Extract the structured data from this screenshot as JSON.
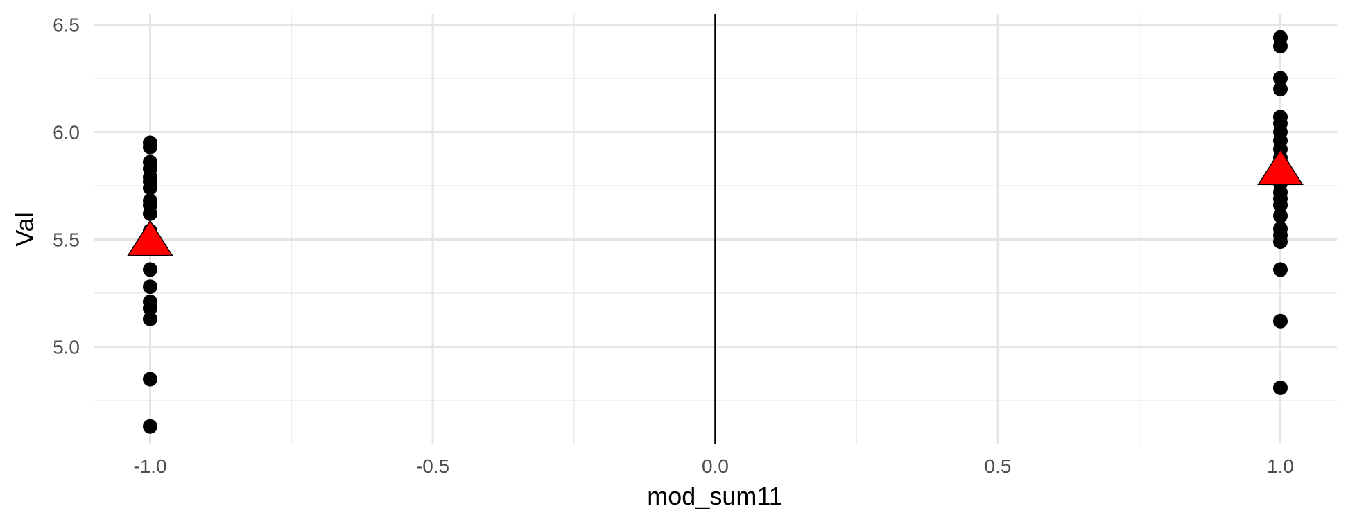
{
  "chart_data": {
    "type": "scatter",
    "title": "",
    "xlabel": "mod_sum11",
    "ylabel": "Val",
    "xlim": [
      -1.1,
      1.1
    ],
    "ylim": [
      4.55,
      6.55
    ],
    "x_ticks": [
      -1.0,
      -0.5,
      0.0,
      0.5,
      1.0
    ],
    "x_tick_labels": [
      "-1.0",
      "-0.5",
      "0.0",
      "0.5",
      "1.0"
    ],
    "y_ticks": [
      5.0,
      5.5,
      6.0,
      6.5
    ],
    "y_tick_labels": [
      "5.0",
      "5.5",
      "6.0",
      "6.5"
    ],
    "grid": true,
    "vline_x": 0.0,
    "series": [
      {
        "marker": "circle",
        "color": "#000000",
        "points": [
          {
            "x": -1,
            "y": 5.95
          },
          {
            "x": -1,
            "y": 5.93
          },
          {
            "x": -1,
            "y": 5.86
          },
          {
            "x": -1,
            "y": 5.83
          },
          {
            "x": -1,
            "y": 5.79
          },
          {
            "x": -1,
            "y": 5.77
          },
          {
            "x": -1,
            "y": 5.74
          },
          {
            "x": -1,
            "y": 5.68
          },
          {
            "x": -1,
            "y": 5.66
          },
          {
            "x": -1,
            "y": 5.62
          },
          {
            "x": -1,
            "y": 5.54
          },
          {
            "x": -1,
            "y": 5.36
          },
          {
            "x": -1,
            "y": 5.28
          },
          {
            "x": -1,
            "y": 5.21
          },
          {
            "x": -1,
            "y": 5.18
          },
          {
            "x": -1,
            "y": 5.13
          },
          {
            "x": -1,
            "y": 4.85
          },
          {
            "x": -1,
            "y": 4.63
          },
          {
            "x": 1,
            "y": 6.44
          },
          {
            "x": 1,
            "y": 6.4
          },
          {
            "x": 1,
            "y": 6.25
          },
          {
            "x": 1,
            "y": 6.2
          },
          {
            "x": 1,
            "y": 6.07
          },
          {
            "x": 1,
            "y": 6.04
          },
          {
            "x": 1,
            "y": 6.0
          },
          {
            "x": 1,
            "y": 5.96
          },
          {
            "x": 1,
            "y": 5.92
          },
          {
            "x": 1,
            "y": 5.88
          },
          {
            "x": 1,
            "y": 5.84
          },
          {
            "x": 1,
            "y": 5.8
          },
          {
            "x": 1,
            "y": 5.76
          },
          {
            "x": 1,
            "y": 5.72
          },
          {
            "x": 1,
            "y": 5.69
          },
          {
            "x": 1,
            "y": 5.66
          },
          {
            "x": 1,
            "y": 5.61
          },
          {
            "x": 1,
            "y": 5.55
          },
          {
            "x": 1,
            "y": 5.52
          },
          {
            "x": 1,
            "y": 5.49
          },
          {
            "x": 1,
            "y": 5.36
          },
          {
            "x": 1,
            "y": 5.12
          },
          {
            "x": 1,
            "y": 4.81
          }
        ]
      },
      {
        "marker": "triangle",
        "color": "#ff0000",
        "points": [
          {
            "x": -1,
            "y": 5.49
          },
          {
            "x": 1,
            "y": 5.82
          }
        ]
      }
    ]
  }
}
